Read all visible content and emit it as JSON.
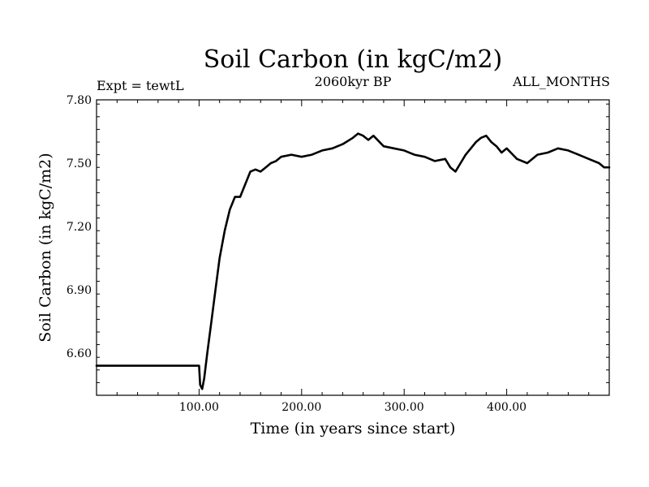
{
  "chart_data": {
    "type": "line",
    "title": "Soil Carbon (in kgC/m2)",
    "left_label": "Expt = tewtL",
    "center_label": "2060kyr BP",
    "right_label": "ALL_MONTHS",
    "xlabel": "Time (in years since start)",
    "ylabel": "Soil Carbon (in kgC/m2)",
    "xlim": [
      0,
      500
    ],
    "ylim": [
      6.4,
      7.8
    ],
    "x_ticks": [
      100,
      200,
      300,
      400
    ],
    "x_tick_labels": [
      "100.00",
      "200.00",
      "300.00",
      "400.00"
    ],
    "y_ticks": [
      6.6,
      6.9,
      7.2,
      7.5,
      7.8
    ],
    "y_tick_labels": [
      "6.60",
      "6.90",
      "7.20",
      "7.50",
      "7.80"
    ],
    "series": [
      {
        "name": "Soil Carbon",
        "x": [
          0,
          100,
          101,
          103,
          105,
          108,
          112,
          116,
          120,
          125,
          130,
          135,
          140,
          145,
          150,
          155,
          160,
          165,
          170,
          175,
          180,
          190,
          200,
          210,
          220,
          230,
          240,
          250,
          255,
          260,
          265,
          270,
          280,
          290,
          300,
          310,
          320,
          330,
          340,
          345,
          350,
          355,
          360,
          365,
          370,
          375,
          380,
          385,
          390,
          395,
          400,
          410,
          420,
          430,
          440,
          450,
          460,
          470,
          480,
          490,
          495,
          500
        ],
        "y": [
          6.54,
          6.54,
          6.45,
          6.43,
          6.48,
          6.6,
          6.75,
          6.9,
          7.05,
          7.18,
          7.28,
          7.34,
          7.34,
          7.4,
          7.46,
          7.47,
          7.46,
          7.48,
          7.5,
          7.51,
          7.53,
          7.54,
          7.53,
          7.54,
          7.56,
          7.57,
          7.59,
          7.62,
          7.64,
          7.63,
          7.61,
          7.63,
          7.58,
          7.57,
          7.56,
          7.54,
          7.53,
          7.51,
          7.52,
          7.48,
          7.46,
          7.5,
          7.54,
          7.57,
          7.6,
          7.62,
          7.63,
          7.6,
          7.58,
          7.55,
          7.57,
          7.52,
          7.5,
          7.54,
          7.55,
          7.57,
          7.56,
          7.54,
          7.52,
          7.5,
          7.48,
          7.48
        ]
      }
    ]
  }
}
